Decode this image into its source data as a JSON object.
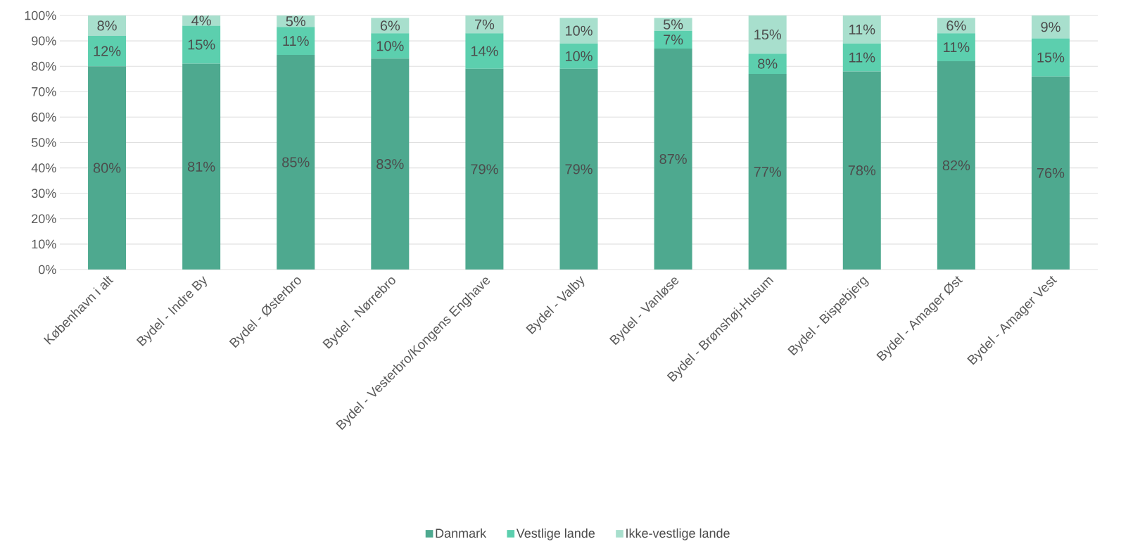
{
  "chart_data": {
    "type": "bar",
    "stacked": true,
    "categories": [
      "København i alt",
      "Bydel - Indre By",
      "Bydel - Østerbro",
      "Bydel - Nørrebro",
      "Bydel - Vesterbro/Kongens Enghave",
      "Bydel - Valby",
      "Bydel - Vanløse",
      "Bydel - Brønshøj-Husum",
      "Bydel - Bispebjerg",
      "Bydel - Amager Øst",
      "Bydel - Amager Vest"
    ],
    "series": [
      {
        "name": "Danmark",
        "color": "#4ea98f",
        "values": [
          80,
          81,
          84.5,
          83,
          79,
          79,
          87,
          77,
          78,
          82,
          76
        ],
        "value_labels": [
          "80%",
          "81%",
          "85%",
          "83%",
          "79%",
          "79%",
          "87%",
          "77%",
          "78%",
          "82%",
          "76%"
        ]
      },
      {
        "name": "Vestlige lande",
        "color": "#5ccfae",
        "values": [
          12,
          15,
          11,
          10,
          14,
          10,
          7,
          8,
          11,
          11,
          15
        ],
        "value_labels": [
          "12%",
          "15%",
          "11%",
          "10%",
          "14%",
          "10%",
          "7%",
          "8%",
          "11%",
          "11%",
          "15%"
        ]
      },
      {
        "name": "Ikke-vestlige lande",
        "color": "#a8dfcd",
        "values": [
          8,
          4,
          4.5,
          6,
          7,
          10,
          5,
          15,
          11,
          6,
          9
        ],
        "value_labels": [
          "8%",
          "4%",
          "5%",
          "6%",
          "7%",
          "10%",
          "5%",
          "15%",
          "11%",
          "6%",
          "9%"
        ]
      }
    ],
    "ylim": [
      0,
      100
    ],
    "yticks": [
      {
        "value": 0,
        "label": "0%"
      },
      {
        "value": 10,
        "label": "10%"
      },
      {
        "value": 20,
        "label": "20%"
      },
      {
        "value": 30,
        "label": "30%"
      },
      {
        "value": 40,
        "label": "40%"
      },
      {
        "value": 50,
        "label": "50%"
      },
      {
        "value": 60,
        "label": "60%"
      },
      {
        "value": 70,
        "label": "70%"
      },
      {
        "value": 80,
        "label": "80%"
      },
      {
        "value": 90,
        "label": "90%"
      },
      {
        "value": 100,
        "label": "100%"
      }
    ],
    "grid": "y",
    "legend": "bottom"
  }
}
